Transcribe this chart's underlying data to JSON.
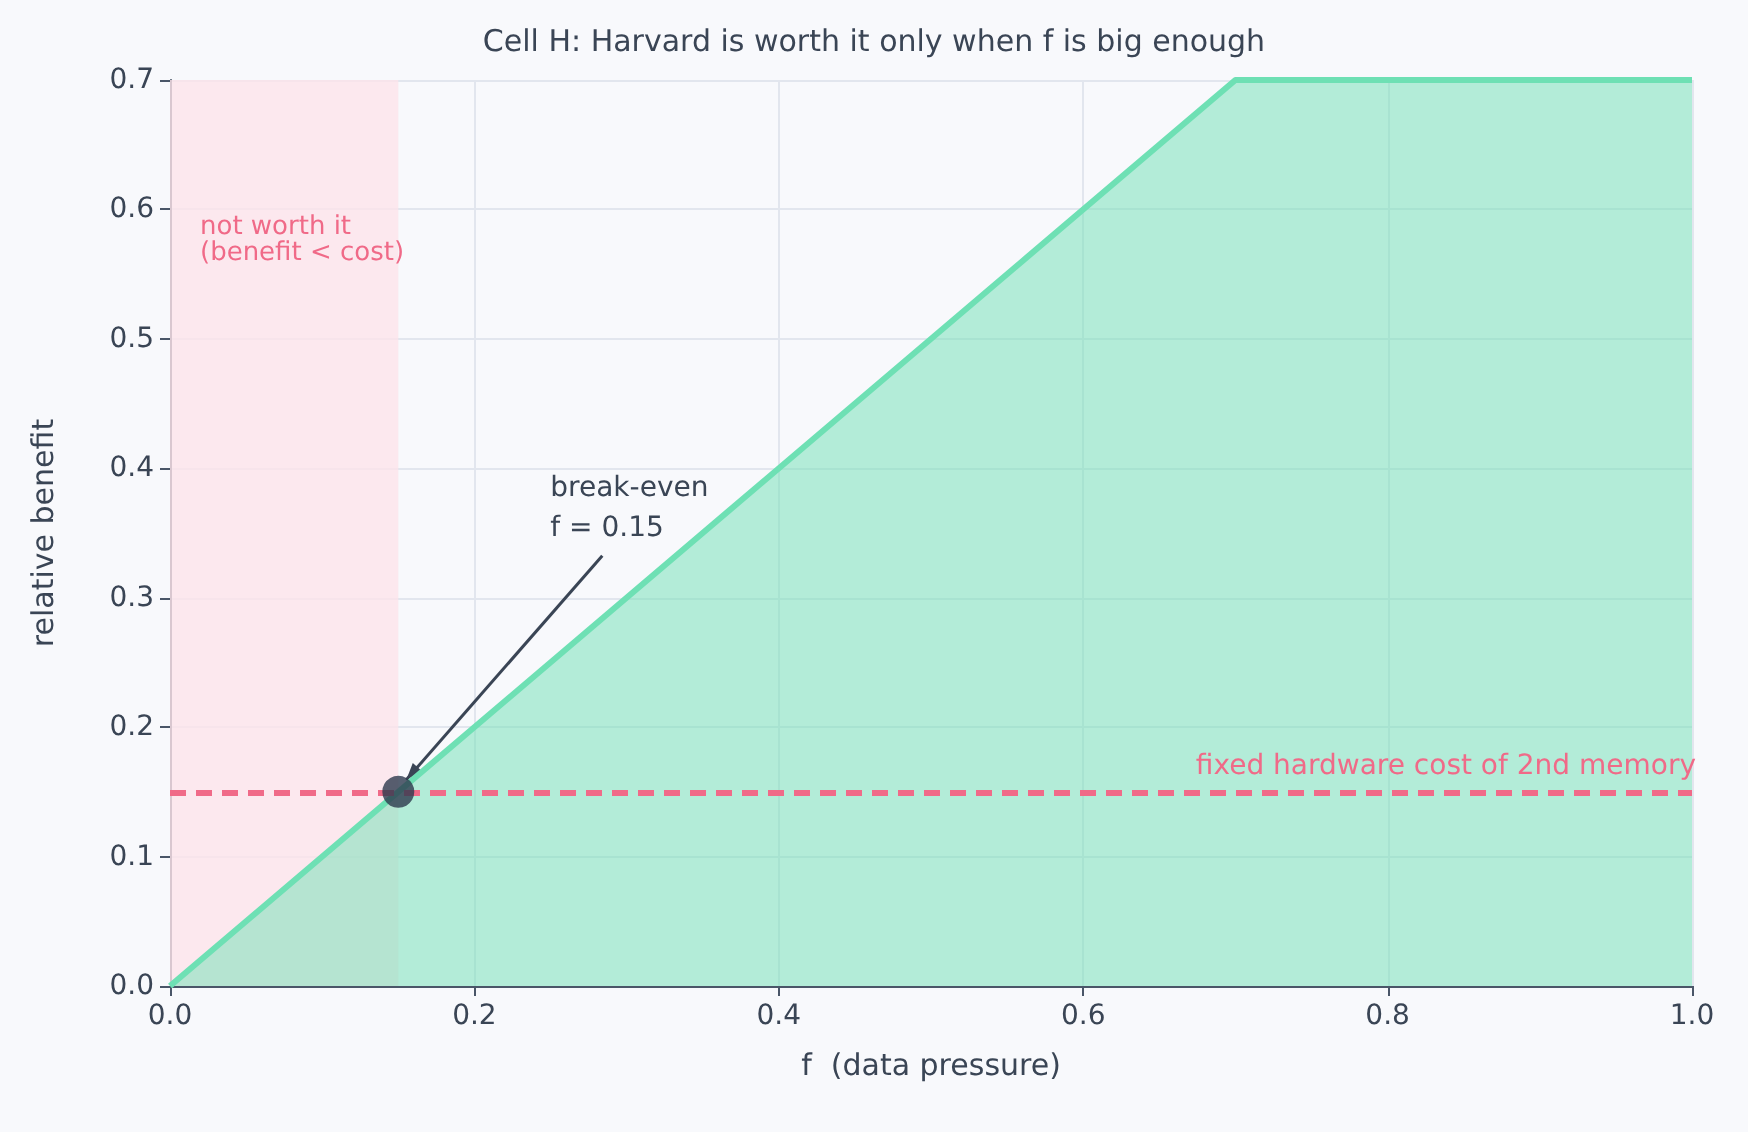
{
  "chart_data": {
    "type": "area",
    "title": "Cell H: Harvard is worth it only when f is big enough",
    "xlabel": "f  (data pressure)",
    "ylabel": "relative benefit",
    "series": [
      {
        "color": "#6ee0b4",
        "x": [
          0,
          0.7,
          1.0
        ],
        "values": [
          0,
          0.7,
          0.7
        ],
        "marker": "none"
      },
      {
        "type": "scatter",
        "color": "#2d3a4e",
        "x": [
          0.15
        ],
        "values": [
          0.15
        ],
        "marker": "circle"
      }
    ],
    "xlim": [
      0,
      1.0
    ],
    "ylim": [
      0,
      0.7
    ],
    "xticks": [
      {
        "value": 0,
        "label": "0.0"
      },
      0.2,
      0.4,
      0.6,
      0.8,
      {
        "value": 1.0,
        "label": "1.0"
      }
    ],
    "yticks": [
      {
        "value": 0,
        "label": "0.0"
      },
      0.1,
      0.2,
      0.3,
      0.4,
      0.5,
      0.6,
      0.7
    ],
    "ref_lines": [
      {
        "axis": "y",
        "value": 0.15,
        "label": "fixed hardware cost of 2nd memory",
        "color": "#f06a88",
        "line_style": "dashed"
      }
    ],
    "bands": [
      {
        "axis": "x",
        "from": 0,
        "to": 0.15,
        "label": "not worth it\n(benefit < cost)",
        "color": "#fde4ea"
      }
    ],
    "annotations": [
      {
        "text": "break-even\nf = 0.15",
        "x": 0.15,
        "y": 0.15
      }
    ],
    "grid": true
  }
}
